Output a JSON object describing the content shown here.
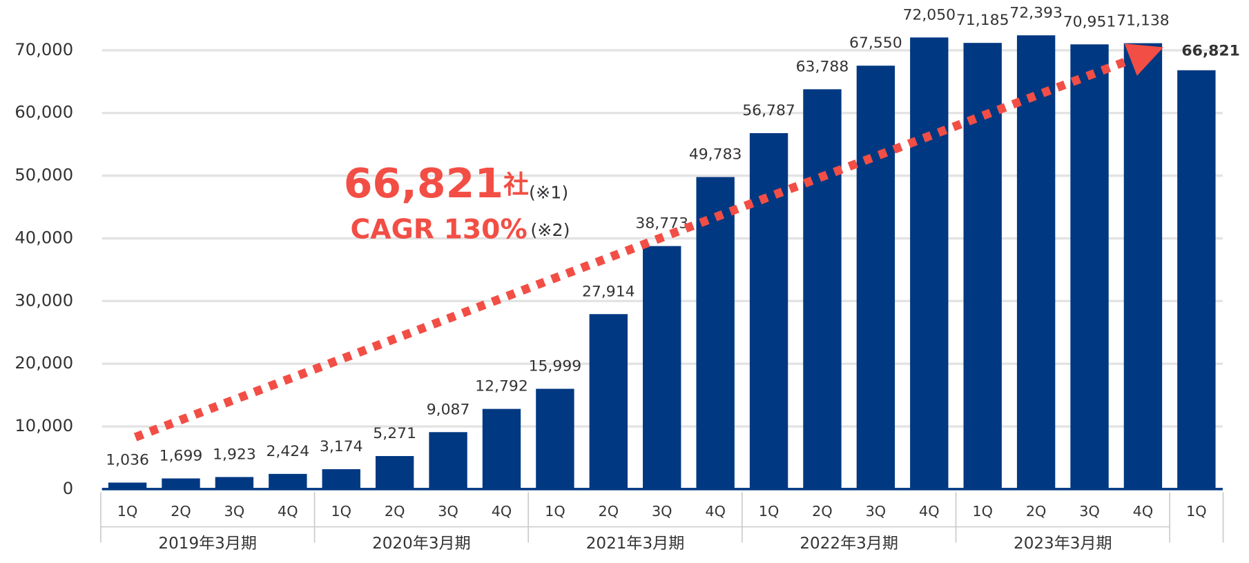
{
  "chart_data": {
    "type": "bar",
    "color": "#003882",
    "categories": [
      "1Q",
      "2Q",
      "3Q",
      "4Q",
      "1Q",
      "2Q",
      "3Q",
      "4Q",
      "1Q",
      "2Q",
      "3Q",
      "4Q",
      "1Q",
      "2Q",
      "3Q",
      "4Q",
      "1Q",
      "2Q",
      "3Q",
      "4Q",
      "1Q"
    ],
    "category_groups": [
      "2019年3月期",
      "2019年3月期",
      "2019年3月期",
      "2019年3月期",
      "2020年3月期",
      "2020年3月期",
      "2020年3月期",
      "2020年3月期",
      "2021年3月期",
      "2021年3月期",
      "2021年3月期",
      "2021年3月期",
      "2022年3月期",
      "2022年3月期",
      "2022年3月期",
      "2022年3月期",
      "2023年3月期",
      "2023年3月期",
      "2023年3月期",
      "2023年3月期",
      null
    ],
    "values": [
      1036,
      1699,
      1923,
      2424,
      3174,
      5271,
      9087,
      12792,
      15999,
      27914,
      38773,
      49783,
      56787,
      63788,
      67550,
      72050,
      71185,
      72393,
      70951,
      71138,
      66821
    ],
    "value_labels": [
      "1,036",
      "1,699",
      "1,923",
      "2,424",
      "3,174",
      "5,271",
      "9,087",
      "12,792",
      "15,999",
      "27,914",
      "38,773",
      "49,783",
      "56,787",
      "63,788",
      "67,550",
      "72,050",
      "71,185",
      "72,393",
      "70,951",
      "71,138",
      "66,821"
    ],
    "ylim": [
      0,
      70000
    ],
    "yticks": [
      0,
      {
        "value": 10000,
        "label": "10,000"
      },
      {
        "value": 20000,
        "label": "20,000"
      },
      {
        "value": 30000,
        "label": "30,000"
      },
      {
        "value": 40000,
        "label": "40,000"
      },
      {
        "value": 50000,
        "label": "50,000"
      },
      {
        "value": 60000,
        "label": "60,000"
      },
      {
        "value": 70000,
        "label": "70,000"
      }
    ],
    "grid": true,
    "annotations": {
      "count": "66,821",
      "unit": "社",
      "note1": "(※1)",
      "cagr": "CAGR 130%",
      "note2": "(※2)"
    }
  }
}
